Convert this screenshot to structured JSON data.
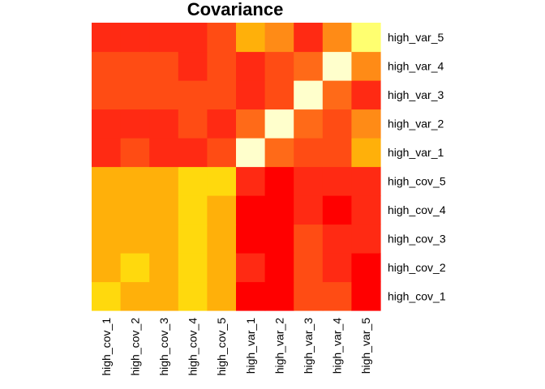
{
  "chart_data": {
    "type": "heatmap",
    "title": "Covariance",
    "xlabel": "",
    "ylabel": "",
    "x_categories": [
      "high_cov_1",
      "high_cov_2",
      "high_cov_3",
      "high_cov_4",
      "high_cov_5",
      "high_var_1",
      "high_var_2",
      "high_var_3",
      "high_var_4",
      "high_var_5"
    ],
    "y_categories": [
      "high_cov_1",
      "high_cov_2",
      "high_cov_3",
      "high_cov_4",
      "high_cov_5",
      "high_var_1",
      "high_var_2",
      "high_var_3",
      "high_var_4",
      "high_var_5"
    ],
    "colormap": "heat",
    "colors": [
      "#FF0000",
      "#FF2A13",
      "#FF4C14",
      "#FF6A18",
      "#FF8B16",
      "#FFB00A",
      "#FFD90D",
      "#FFFF70",
      "#FFFFCC"
    ],
    "cells": [
      [
        "#FFD90D",
        "#FFB00A",
        "#FFB00A",
        "#FFD90D",
        "#FFB00A",
        "#FF0000",
        "#FF0000",
        "#FF4C14",
        "#FF4C14",
        "#FF0000"
      ],
      [
        "#FFB00A",
        "#FFD90D",
        "#FFB00A",
        "#FFD90D",
        "#FFB00A",
        "#FF2A13",
        "#FF0000",
        "#FF4C14",
        "#FF2A13",
        "#FF0000"
      ],
      [
        "#FFB00A",
        "#FFB00A",
        "#FFB00A",
        "#FFD90D",
        "#FFB00A",
        "#FF0000",
        "#FF0000",
        "#FF4C14",
        "#FF2A13",
        "#FF2A13"
      ],
      [
        "#FFB00A",
        "#FFB00A",
        "#FFB00A",
        "#FFD90D",
        "#FFB00A",
        "#FF0000",
        "#FF0000",
        "#FF2A13",
        "#FF0000",
        "#FF2A13"
      ],
      [
        "#FFB00A",
        "#FFB00A",
        "#FFB00A",
        "#FFD90D",
        "#FFD90D",
        "#FF2A13",
        "#FF0000",
        "#FF2A13",
        "#FF2A13",
        "#FF2A13"
      ],
      [
        "#FF2A13",
        "#FF4C14",
        "#FF2A13",
        "#FF2A13",
        "#FF4C14",
        "#FFFFCC",
        "#FF6A18",
        "#FF4C14",
        "#FF4C14",
        "#FFB00A"
      ],
      [
        "#FF2A13",
        "#FF2A13",
        "#FF2A13",
        "#FF4C14",
        "#FF2A13",
        "#FF6A18",
        "#FFFFCC",
        "#FF6A18",
        "#FF4C14",
        "#FF8B16"
      ],
      [
        "#FF4C14",
        "#FF4C14",
        "#FF4C14",
        "#FF4C14",
        "#FF4C14",
        "#FF2A13",
        "#FF4C14",
        "#FFFFCC",
        "#FF6A18",
        "#FF2A13"
      ],
      [
        "#FF4C14",
        "#FF4C14",
        "#FF4C14",
        "#FF2A13",
        "#FF4C14",
        "#FF2A13",
        "#FF4C14",
        "#FF6A18",
        "#FFFFCC",
        "#FF8B16"
      ],
      [
        "#FF2A13",
        "#FF2A13",
        "#FF2A13",
        "#FF2A13",
        "#FF4C14",
        "#FFB00A",
        "#FF8B16",
        "#FF2A13",
        "#FF8B16",
        "#FFFF70"
      ]
    ],
    "grid": false,
    "legend": "none"
  }
}
